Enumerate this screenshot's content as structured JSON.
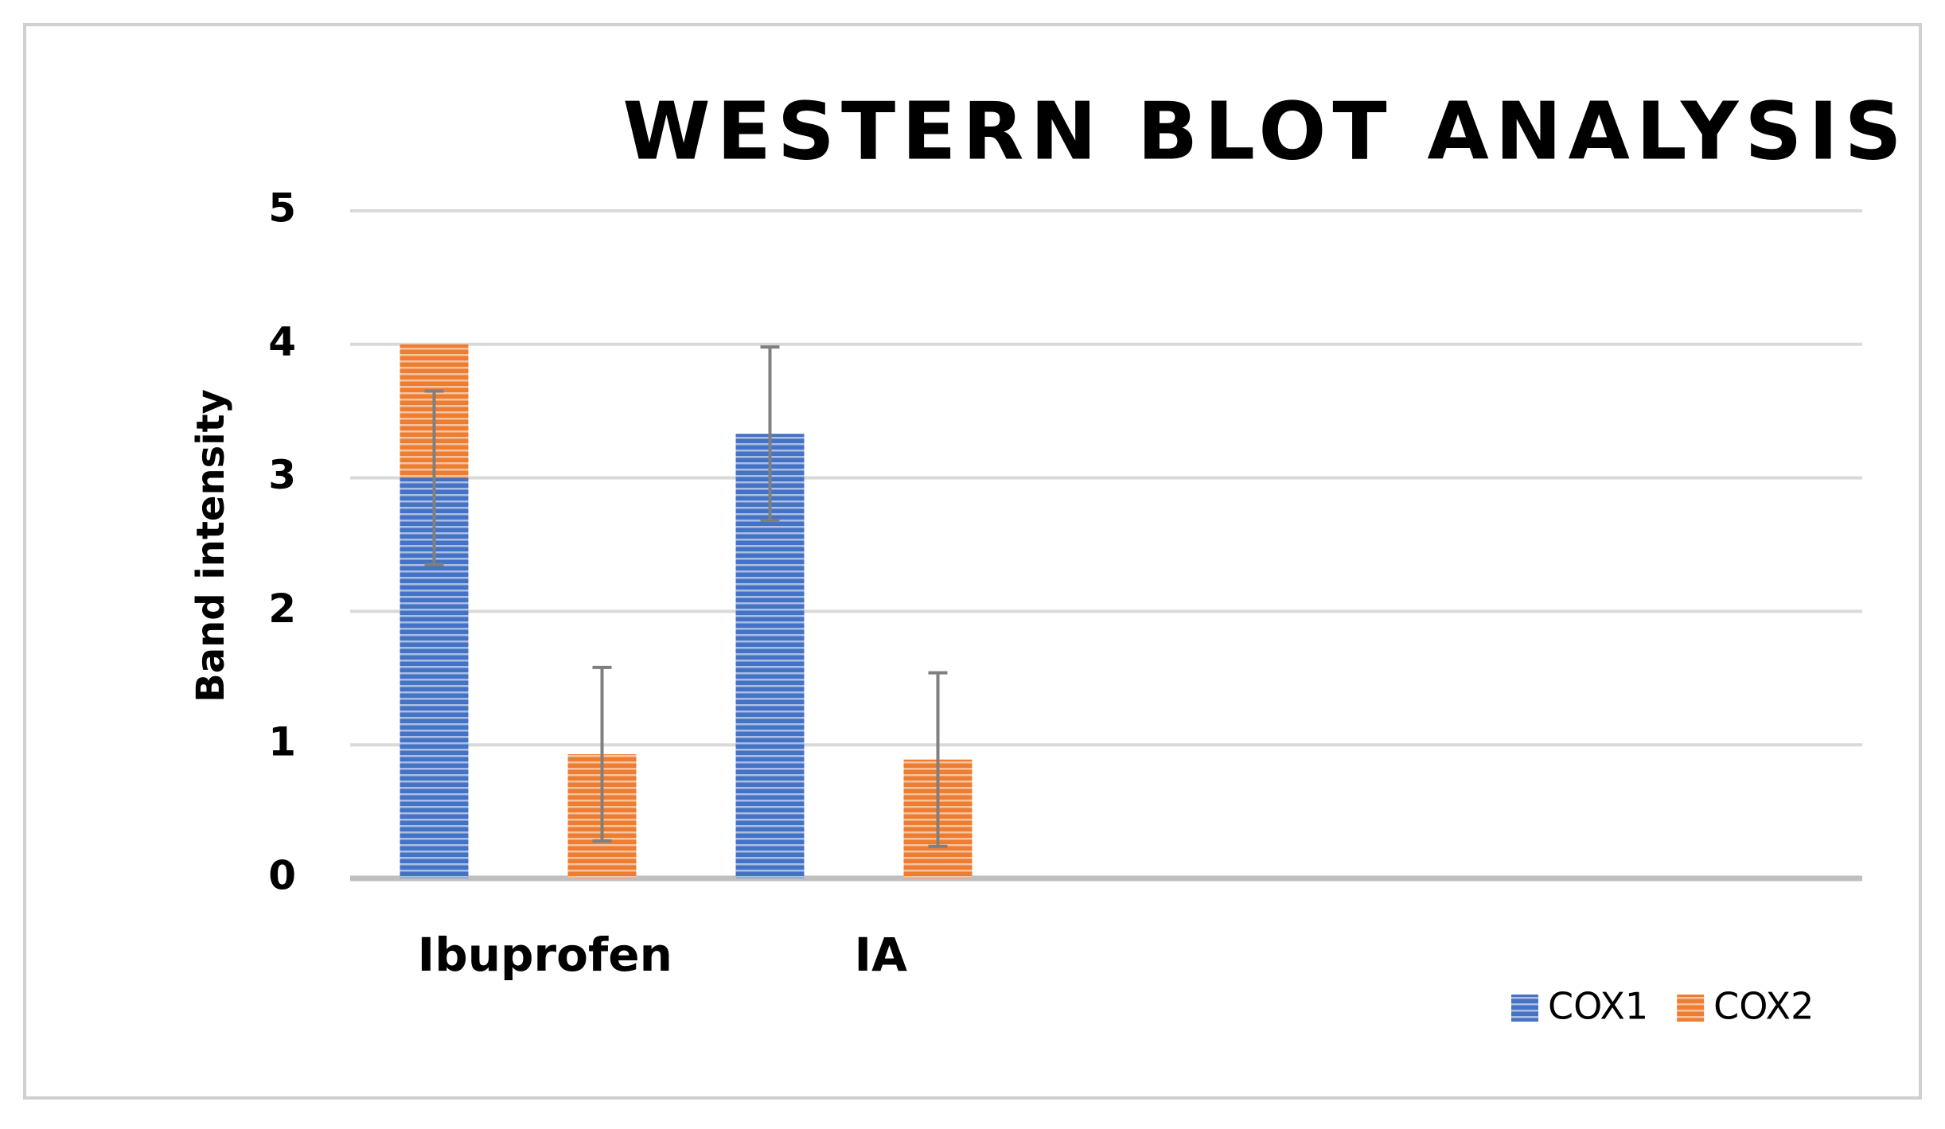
{
  "chart_data": {
    "type": "bar",
    "stacked": true,
    "title": "WESTERN BLOT ANALYSIS",
    "y_label": "Band intensity",
    "categories": [
      "Ibuprofen",
      null,
      "IA",
      null
    ],
    "series": [
      {
        "name": "COX1",
        "color": "#4472c4",
        "values": [
          3,
          null,
          3.33,
          null
        ],
        "errors": [
          0.65,
          null,
          0.65,
          null
        ]
      },
      {
        "name": "COX2",
        "color": "#ed7d31",
        "values": [
          1,
          0.93,
          null,
          0.89
        ],
        "errors": [
          null,
          0.65,
          null,
          0.65
        ]
      }
    ],
    "ylim": [
      0,
      5
    ],
    "yticks": [
      0,
      1,
      2,
      3,
      4,
      5
    ],
    "grid": true,
    "legend": "bottom-right"
  }
}
